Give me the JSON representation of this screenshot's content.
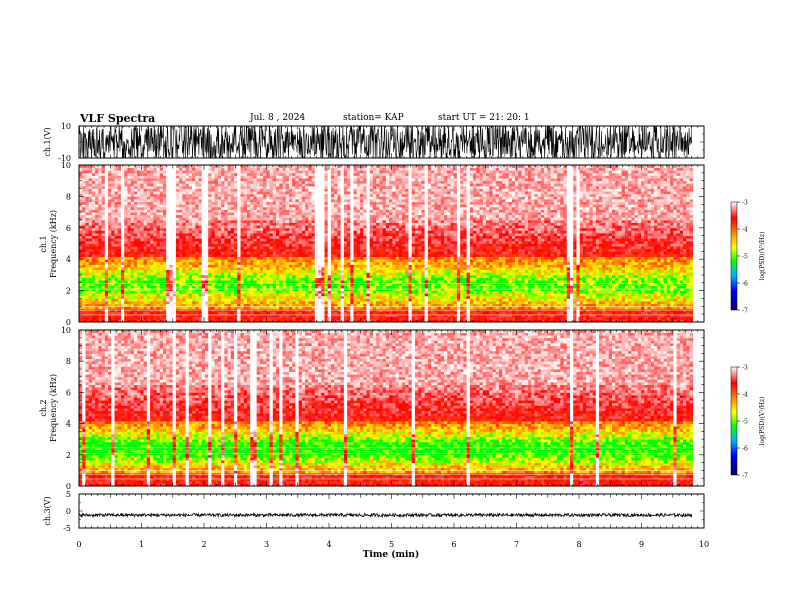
{
  "header": {
    "title": "VLF Spectra",
    "date": "Jul. 8 , 2024",
    "station": "station= KAP",
    "start": "start UT =  21: 20: 1"
  },
  "chart_data": [
    {
      "type": "line",
      "ylabel": "ch.1(V)",
      "ylim": [
        -10,
        10
      ],
      "yticks": [
        "10",
        "-10"
      ],
      "xlim": [
        0,
        10
      ],
      "description_series": "broadband waveform"
    },
    {
      "type": "heatmap",
      "ylabel": "ch.1\nFrequency (kHz)",
      "ylabel_line1": "ch.1",
      "ylabel_line2": "Frequency (kHz)",
      "ylim": [
        0,
        10
      ],
      "yticks": [
        "0",
        "2",
        "4",
        "6",
        "8",
        "10"
      ],
      "xlim": [
        0,
        10
      ],
      "colorbar": {
        "label": "log(PSD)(V²/Hz)",
        "range": [
          -7,
          -3
        ],
        "ticks": [
          "-3",
          "-4",
          "-5",
          "-6",
          "-7"
        ]
      }
    },
    {
      "type": "heatmap",
      "ylabel_line1": "ch.2",
      "ylabel_line2": "Frequency (kHz)",
      "ylim": [
        0,
        10
      ],
      "yticks": [
        "0",
        "2",
        "4",
        "6",
        "8",
        "10"
      ],
      "xlim": [
        0,
        10
      ],
      "colorbar": {
        "label": "log(PSD)(V²/Hz)",
        "range": [
          -7,
          -3
        ],
        "ticks": [
          "-3",
          "-4",
          "-5",
          "-6",
          "-7"
        ]
      }
    },
    {
      "type": "line",
      "ylabel": "ch.3(V)",
      "ylim": [
        -5,
        5
      ],
      "yticks": [
        "5",
        "0",
        "-5"
      ],
      "xlim": [
        0,
        10
      ],
      "xlabel": "Time (min)",
      "xticks": [
        "0",
        "1",
        "2",
        "3",
        "4",
        "5",
        "6",
        "7",
        "8",
        "9",
        "10"
      ]
    }
  ],
  "colors": {
    "spec_high": "#ff0000",
    "spec_mid": "#ffff00",
    "spec_green": "#00ff00",
    "spec_low": "#0000ff",
    "line": "#000000"
  }
}
